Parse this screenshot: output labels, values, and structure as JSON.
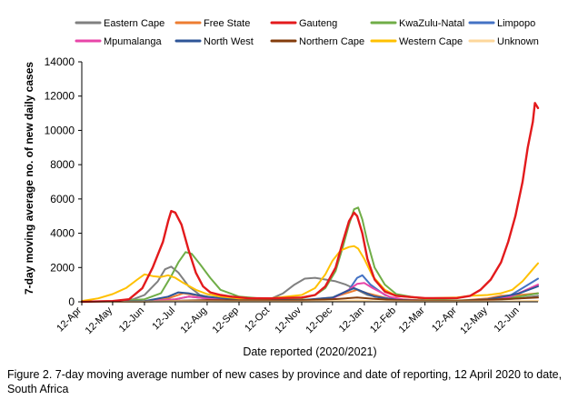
{
  "caption": "Figure 2. 7-day moving average number of new cases by province and date of reporting, 12 April 2020 to date, South Africa",
  "chart_data": {
    "type": "line",
    "title": "",
    "xlabel": "Date reported (2020/2021)",
    "ylabel": "7-day moving average no. of new daily cases",
    "ylim": [
      0,
      14000
    ],
    "yticks": [
      0,
      2000,
      4000,
      6000,
      8000,
      10000,
      12000,
      14000
    ],
    "ytick_labels": [
      "0",
      "2000",
      "4000",
      "6000",
      "8000",
      "10000",
      "12000",
      "14000"
    ],
    "xlim": [
      "2020-04-12",
      "2021-06-30"
    ],
    "xticks": [
      "2020-04-12",
      "2020-05-12",
      "2020-06-12",
      "2020-07-12",
      "2020-08-12",
      "2020-09-12",
      "2020-10-12",
      "2020-11-12",
      "2020-12-12",
      "2021-01-12",
      "2021-02-12",
      "2021-03-12",
      "2021-04-12",
      "2021-05-12",
      "2021-06-12"
    ],
    "xtick_labels": [
      "12-Apr",
      "12-May",
      "12-Jun",
      "12-Jul",
      "12-Aug",
      "12-Sep",
      "12-Oct",
      "12-Nov",
      "12-Dec",
      "12-Jan",
      "12-Feb",
      "12-Mar",
      "12-Apr",
      "12-May",
      "12-Jun"
    ],
    "grid": false,
    "legend_position": "top",
    "series": [
      {
        "name": "Eastern Cape",
        "color": "#808080",
        "x": [
          "2020-04-12",
          "2020-05-12",
          "2020-06-01",
          "2020-06-12",
          "2020-06-25",
          "2020-07-02",
          "2020-07-08",
          "2020-07-15",
          "2020-07-25",
          "2020-08-05",
          "2020-08-20",
          "2020-09-12",
          "2020-10-12",
          "2020-10-25",
          "2020-11-05",
          "2020-11-15",
          "2020-11-25",
          "2020-12-05",
          "2020-12-15",
          "2020-12-25",
          "2021-01-05",
          "2021-01-15",
          "2021-02-01",
          "2021-02-12",
          "2021-03-12",
          "2021-04-12",
          "2021-05-12",
          "2021-06-12",
          "2021-06-30"
        ],
        "y": [
          10,
          40,
          150,
          400,
          1200,
          1900,
          2050,
          1700,
          900,
          400,
          200,
          120,
          150,
          500,
          1000,
          1350,
          1400,
          1300,
          1200,
          1000,
          700,
          400,
          200,
          120,
          80,
          60,
          80,
          200,
          350
        ]
      },
      {
        "name": "Free State",
        "color": "#ed7d31",
        "x": [
          "2020-04-12",
          "2020-06-12",
          "2020-07-05",
          "2020-07-20",
          "2020-08-05",
          "2020-08-25",
          "2020-09-12",
          "2020-11-12",
          "2020-12-12",
          "2021-01-05",
          "2021-01-15",
          "2021-02-05",
          "2021-03-12",
          "2021-04-12",
          "2021-05-12",
          "2021-05-25",
          "2021-06-12",
          "2021-06-30"
        ],
        "y": [
          2,
          40,
          200,
          500,
          350,
          150,
          80,
          80,
          250,
          700,
          500,
          180,
          80,
          60,
          200,
          350,
          400,
          500
        ]
      },
      {
        "name": "Gauteng",
        "color": "#e31a1c",
        "x": [
          "2020-04-12",
          "2020-05-12",
          "2020-05-28",
          "2020-06-10",
          "2020-06-20",
          "2020-06-30",
          "2020-07-05",
          "2020-07-08",
          "2020-07-12",
          "2020-07-18",
          "2020-07-25",
          "2020-08-01",
          "2020-08-08",
          "2020-08-15",
          "2020-08-25",
          "2020-09-05",
          "2020-09-20",
          "2020-10-12",
          "2020-11-12",
          "2020-11-25",
          "2020-12-05",
          "2020-12-15",
          "2020-12-22",
          "2020-12-28",
          "2021-01-02",
          "2021-01-05",
          "2021-01-10",
          "2021-01-15",
          "2021-01-22",
          "2021-02-01",
          "2021-02-12",
          "2021-03-12",
          "2021-04-12",
          "2021-04-25",
          "2021-05-05",
          "2021-05-15",
          "2021-05-25",
          "2021-06-01",
          "2021-06-08",
          "2021-06-15",
          "2021-06-20",
          "2021-06-25",
          "2021-06-27",
          "2021-06-30"
        ],
        "y": [
          5,
          40,
          150,
          800,
          2000,
          3500,
          4700,
          5300,
          5200,
          4500,
          3000,
          1700,
          900,
          550,
          400,
          300,
          220,
          200,
          250,
          400,
          900,
          2000,
          3500,
          4700,
          5200,
          5000,
          4000,
          2500,
          1300,
          600,
          350,
          220,
          220,
          350,
          700,
          1300,
          2300,
          3500,
          5000,
          7000,
          9000,
          10500,
          11600,
          11300
        ]
      },
      {
        "name": "KwaZulu-Natal",
        "color": "#70ad47",
        "x": [
          "2020-04-12",
          "2020-05-12",
          "2020-06-12",
          "2020-06-28",
          "2020-07-08",
          "2020-07-15",
          "2020-07-22",
          "2020-07-28",
          "2020-08-05",
          "2020-08-15",
          "2020-08-25",
          "2020-09-12",
          "2020-10-12",
          "2020-11-12",
          "2020-11-25",
          "2020-12-05",
          "2020-12-15",
          "2020-12-22",
          "2020-12-28",
          "2021-01-02",
          "2021-01-06",
          "2021-01-10",
          "2021-01-15",
          "2021-01-22",
          "2021-02-01",
          "2021-02-12",
          "2021-03-12",
          "2021-04-12",
          "2021-05-12",
          "2021-06-12",
          "2021-06-30"
        ],
        "y": [
          3,
          30,
          150,
          500,
          1500,
          2300,
          2900,
          2800,
          2200,
          1400,
          700,
          300,
          150,
          200,
          400,
          800,
          1800,
          3200,
          4500,
          5400,
          5500,
          4800,
          3500,
          2000,
          1000,
          450,
          150,
          80,
          120,
          300,
          500
        ]
      },
      {
        "name": "Limpopo",
        "color": "#4472c4",
        "x": [
          "2020-04-12",
          "2020-06-12",
          "2020-07-12",
          "2020-07-25",
          "2020-08-12",
          "2020-09-12",
          "2020-11-12",
          "2020-12-12",
          "2020-12-28",
          "2021-01-05",
          "2021-01-10",
          "2021-01-18",
          "2021-02-01",
          "2021-02-12",
          "2021-03-12",
          "2021-04-12",
          "2021-05-12",
          "2021-06-01",
          "2021-06-15",
          "2021-06-30"
        ],
        "y": [
          1,
          20,
          150,
          300,
          200,
          80,
          60,
          200,
          700,
          1400,
          1550,
          1000,
          400,
          150,
          60,
          40,
          80,
          300,
          800,
          1350
        ]
      },
      {
        "name": "Mpumalanga",
        "color": "#e845a8",
        "x": [
          "2020-04-12",
          "2020-06-12",
          "2020-07-12",
          "2020-07-25",
          "2020-08-12",
          "2020-09-12",
          "2020-11-12",
          "2020-12-12",
          "2020-12-28",
          "2021-01-05",
          "2021-01-12",
          "2021-01-20",
          "2021-02-05",
          "2021-02-20",
          "2021-03-12",
          "2021-04-12",
          "2021-05-12",
          "2021-06-01",
          "2021-06-15",
          "2021-06-30"
        ],
        "y": [
          1,
          20,
          150,
          300,
          200,
          80,
          60,
          200,
          700,
          1050,
          1100,
          800,
          300,
          120,
          60,
          40,
          80,
          250,
          600,
          1000
        ]
      },
      {
        "name": "North West",
        "color": "#2e5597",
        "x": [
          "2020-04-12",
          "2020-06-12",
          "2020-07-05",
          "2020-07-15",
          "2020-07-25",
          "2020-08-10",
          "2020-09-12",
          "2020-11-12",
          "2020-12-12",
          "2020-12-25",
          "2021-01-02",
          "2021-01-10",
          "2021-01-22",
          "2021-02-12",
          "2021-03-12",
          "2021-04-12",
          "2021-05-12",
          "2021-05-25",
          "2021-06-12",
          "2021-06-30"
        ],
        "y": [
          1,
          40,
          300,
          550,
          500,
          300,
          120,
          100,
          250,
          600,
          800,
          600,
          300,
          120,
          60,
          50,
          150,
          280,
          500,
          900
        ]
      },
      {
        "name": "Northern Cape",
        "color": "#843c0c",
        "x": [
          "2020-04-12",
          "2020-06-12",
          "2020-07-12",
          "2020-08-12",
          "2020-09-12",
          "2020-11-12",
          "2020-12-12",
          "2021-01-05",
          "2021-01-20",
          "2021-02-12",
          "2021-03-12",
          "2021-04-12",
          "2021-05-12",
          "2021-06-12",
          "2021-06-30"
        ],
        "y": [
          0,
          10,
          60,
          100,
          80,
          90,
          150,
          250,
          180,
          100,
          60,
          60,
          120,
          200,
          250
        ]
      },
      {
        "name": "Western Cape",
        "color": "#ffc000",
        "x": [
          "2020-04-12",
          "2020-04-28",
          "2020-05-12",
          "2020-05-25",
          "2020-06-05",
          "2020-06-12",
          "2020-06-20",
          "2020-06-28",
          "2020-07-05",
          "2020-07-12",
          "2020-07-20",
          "2020-08-01",
          "2020-08-12",
          "2020-08-25",
          "2020-09-12",
          "2020-10-12",
          "2020-11-12",
          "2020-11-25",
          "2020-12-05",
          "2020-12-12",
          "2020-12-20",
          "2020-12-28",
          "2021-01-02",
          "2021-01-06",
          "2021-01-12",
          "2021-01-20",
          "2021-02-01",
          "2021-02-12",
          "2021-03-12",
          "2021-04-12",
          "2021-04-25",
          "2021-05-12",
          "2021-05-25",
          "2021-06-05",
          "2021-06-15",
          "2021-06-25",
          "2021-06-30"
        ],
        "y": [
          50,
          200,
          450,
          800,
          1300,
          1600,
          1500,
          1450,
          1550,
          1400,
          1100,
          700,
          450,
          300,
          200,
          200,
          400,
          800,
          1600,
          2400,
          3000,
          3200,
          3250,
          3100,
          2500,
          1500,
          700,
          350,
          200,
          250,
          350,
          400,
          500,
          700,
          1200,
          1900,
          2250
        ]
      },
      {
        "name": "Unknown",
        "color": "#fdd79b",
        "x": [
          "2020-04-12",
          "2020-06-12",
          "2020-07-12",
          "2020-08-12",
          "2020-09-12",
          "2020-11-12",
          "2020-12-12",
          "2021-01-05",
          "2021-01-20",
          "2021-02-12",
          "2021-03-12",
          "2021-04-12",
          "2021-05-12",
          "2021-06-12",
          "2021-06-30"
        ],
        "y": [
          0,
          5,
          30,
          20,
          10,
          10,
          40,
          80,
          40,
          20,
          10,
          10,
          20,
          40,
          60
        ]
      }
    ]
  }
}
